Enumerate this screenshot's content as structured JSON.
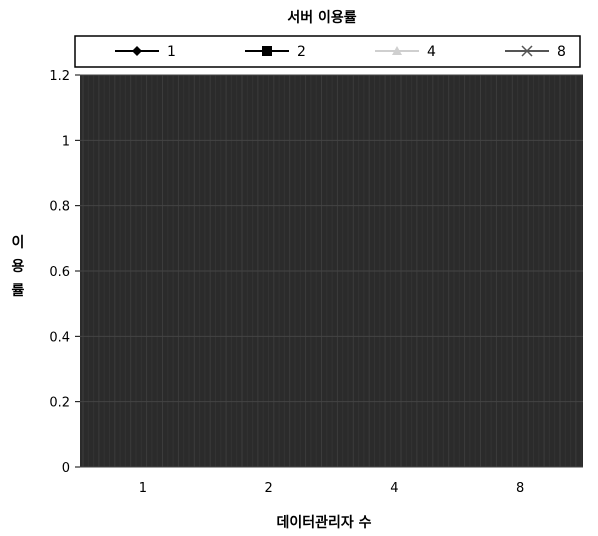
{
  "chart_data": {
    "type": "line",
    "title": "서버 이용률",
    "xlabel": "데이터관리자 수",
    "ylabel": "이용률",
    "categories": [
      "1",
      "2",
      "4",
      "8"
    ],
    "ylim": [
      0,
      1.2
    ],
    "yticks": [
      "0",
      "0.2",
      "0.4",
      "0.6",
      "0.8",
      "1",
      "1.2"
    ],
    "legend_position": "top",
    "plot_background": "#2b2b2b",
    "series": [
      {
        "name": "1",
        "marker": "diamond",
        "color": "#000000",
        "values": [
          null,
          null,
          null,
          null
        ]
      },
      {
        "name": "2",
        "marker": "square",
        "color": "#000000",
        "values": [
          null,
          null,
          null,
          null
        ]
      },
      {
        "name": "4",
        "marker": "triangle",
        "color": "#cfcfcf",
        "values": [
          null,
          null,
          null,
          null
        ]
      },
      {
        "name": "8",
        "marker": "x",
        "color": "#555555",
        "values": [
          null,
          null,
          null,
          null
        ]
      }
    ]
  }
}
